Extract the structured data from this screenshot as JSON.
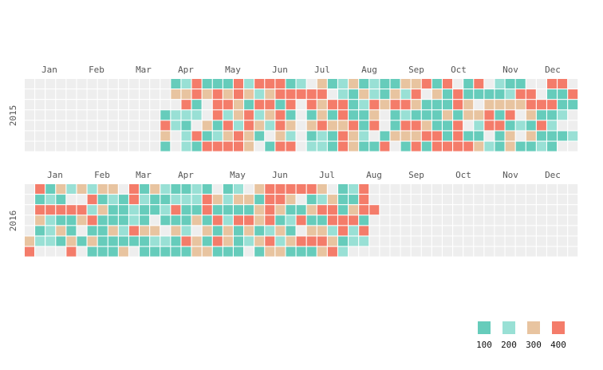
{
  "chart_data": {
    "type": "heatmap",
    "subtype": "calendar",
    "colors": {
      "empty": "#eeeeee",
      "levels": [
        "#66ccbb",
        "#99e0d5",
        "#e8c4a0",
        "#f47c6a"
      ]
    },
    "legend": {
      "placement": "bottom-right",
      "labels": [
        "100",
        "200",
        "300",
        "400"
      ]
    },
    "years": [
      {
        "label": "2015",
        "months": [
          "Jan",
          "Feb",
          "Mar",
          "Apr",
          "May",
          "Jun",
          "Jul",
          "Aug",
          "Sep",
          "Oct",
          "Nov",
          "Dec"
        ],
        "first_active_week": 13,
        "weeks": [
          [
            0,
            0,
            0,
            0,
            0,
            0,
            0
          ],
          [
            0,
            0,
            0,
            0,
            0,
            0,
            0
          ],
          [
            0,
            0,
            0,
            0,
            0,
            0,
            0
          ],
          [
            0,
            0,
            0,
            0,
            0,
            0,
            0
          ],
          [
            0,
            0,
            0,
            0,
            0,
            0,
            0
          ],
          [
            0,
            0,
            0,
            0,
            0,
            0,
            0
          ],
          [
            0,
            0,
            0,
            0,
            0,
            0,
            0
          ],
          [
            0,
            0,
            0,
            0,
            0,
            0,
            0
          ],
          [
            0,
            0,
            0,
            0,
            0,
            0,
            0
          ],
          [
            0,
            0,
            0,
            0,
            0,
            0,
            0
          ],
          [
            0,
            0,
            0,
            0,
            0,
            0,
            0
          ],
          [
            0,
            0,
            0,
            0,
            0,
            0,
            0
          ],
          [
            0,
            0,
            0,
            0,
            0,
            0,
            0
          ],
          [
            0,
            0,
            0,
            1,
            4,
            3,
            1
          ],
          [
            1,
            3,
            0,
            2,
            2,
            0,
            0
          ],
          [
            2,
            3,
            4,
            2,
            1,
            2,
            2
          ],
          [
            4,
            4,
            1,
            2,
            0,
            4,
            1
          ],
          [
            1,
            3,
            0,
            0,
            3,
            1,
            4
          ],
          [
            1,
            4,
            4,
            4,
            1,
            2,
            4
          ],
          [
            1,
            3,
            4,
            2,
            4,
            3,
            4
          ],
          [
            4,
            4,
            3,
            3,
            2,
            4,
            4
          ],
          [
            2,
            3,
            1,
            4,
            4,
            3,
            3
          ],
          [
            4,
            2,
            4,
            2,
            3,
            1,
            0
          ],
          [
            4,
            3,
            4,
            3,
            2,
            0,
            1
          ],
          [
            4,
            4,
            1,
            4,
            4,
            3,
            4
          ],
          [
            1,
            4,
            4,
            1,
            3,
            2,
            4
          ],
          [
            2,
            4,
            0,
            0,
            0,
            0,
            0
          ],
          [
            0,
            4,
            4,
            1,
            3,
            1,
            2
          ],
          [
            3,
            4,
            3,
            3,
            4,
            2,
            2
          ],
          [
            1,
            0,
            4,
            1,
            3,
            1,
            1
          ],
          [
            2,
            2,
            4,
            4,
            3,
            4,
            4
          ],
          [
            3,
            1,
            1,
            1,
            4,
            3,
            3
          ],
          [
            1,
            3,
            2,
            1,
            1,
            2,
            1
          ],
          [
            2,
            2,
            4,
            3,
            4,
            0,
            1
          ],
          [
            1,
            1,
            3,
            0,
            0,
            1,
            4
          ],
          [
            1,
            3,
            4,
            1,
            1,
            3,
            0
          ],
          [
            3,
            2,
            4,
            2,
            4,
            3,
            1
          ],
          [
            3,
            4,
            3,
            1,
            4,
            3,
            4
          ],
          [
            4,
            0,
            1,
            1,
            3,
            4,
            1
          ],
          [
            1,
            3,
            1,
            1,
            1,
            4,
            4
          ],
          [
            4,
            1,
            1,
            3,
            1,
            1,
            4
          ],
          [
            0,
            4,
            4,
            1,
            4,
            4,
            4
          ],
          [
            1,
            1,
            3,
            3,
            0,
            1,
            4
          ],
          [
            4,
            1,
            0,
            3,
            2,
            1,
            3
          ],
          [
            0,
            1,
            3,
            4,
            4,
            0,
            2
          ],
          [
            2,
            1,
            3,
            1,
            4,
            1,
            1
          ],
          [
            1,
            2,
            3,
            4,
            1,
            3,
            3
          ],
          [
            1,
            4,
            3,
            0,
            2,
            0,
            1
          ],
          [
            0,
            4,
            4,
            3,
            1,
            3,
            1
          ],
          [
            0,
            0,
            4,
            1,
            4,
            1,
            2
          ],
          [
            4,
            1,
            4,
            1,
            2,
            1,
            1
          ],
          [
            4,
            1,
            1,
            2,
            0,
            1,
            0
          ],
          [
            0,
            4,
            1,
            0,
            0,
            2,
            0
          ]
        ]
      },
      {
        "label": "2016",
        "months": [
          "Jan",
          "Feb",
          "Mar",
          "Apr",
          "May",
          "Jun",
          "Jul",
          "Aug",
          "Sep",
          "Oct",
          "Nov",
          "Dec"
        ],
        "first_active_week": 0,
        "weeks": [
          [
            0,
            0,
            0,
            0,
            0,
            3,
            4
          ],
          [
            4,
            1,
            4,
            3,
            1,
            2,
            0
          ],
          [
            1,
            2,
            4,
            2,
            2,
            2,
            0
          ],
          [
            3,
            1,
            4,
            1,
            3,
            1,
            0
          ],
          [
            2,
            0,
            4,
            1,
            1,
            3,
            4
          ],
          [
            3,
            0,
            4,
            3,
            0,
            1,
            0
          ],
          [
            2,
            4,
            2,
            4,
            1,
            3,
            1
          ],
          [
            3,
            1,
            3,
            1,
            1,
            1,
            1
          ],
          [
            3,
            2,
            1,
            1,
            3,
            1,
            1
          ],
          [
            0,
            1,
            1,
            1,
            2,
            1,
            3
          ],
          [
            4,
            4,
            2,
            2,
            4,
            1,
            0
          ],
          [
            1,
            2,
            1,
            1,
            3,
            1,
            1
          ],
          [
            3,
            1,
            1,
            0,
            3,
            2,
            1
          ],
          [
            2,
            1,
            2,
            1,
            0,
            2,
            1
          ],
          [
            1,
            2,
            4,
            1,
            3,
            1,
            1
          ],
          [
            1,
            2,
            1,
            1,
            2,
            4,
            1
          ],
          [
            2,
            2,
            1,
            3,
            0,
            3,
            3
          ],
          [
            1,
            4,
            4,
            1,
            3,
            1,
            3
          ],
          [
            0,
            3,
            1,
            4,
            1,
            4,
            1
          ],
          [
            1,
            2,
            1,
            2,
            3,
            3,
            1
          ],
          [
            2,
            3,
            1,
            4,
            1,
            1,
            1
          ],
          [
            0,
            3,
            1,
            4,
            3,
            2,
            0
          ],
          [
            3,
            1,
            3,
            3,
            1,
            3,
            1
          ],
          [
            4,
            4,
            4,
            4,
            2,
            4,
            3
          ],
          [
            4,
            4,
            3,
            1,
            3,
            2,
            3
          ],
          [
            4,
            3,
            1,
            2,
            1,
            3,
            1
          ],
          [
            4,
            0,
            1,
            4,
            0,
            4,
            1
          ],
          [
            4,
            1,
            3,
            1,
            3,
            4,
            1
          ],
          [
            3,
            2,
            4,
            1,
            3,
            4,
            3
          ],
          [
            0,
            3,
            4,
            4,
            2,
            3,
            4
          ],
          [
            1,
            1,
            1,
            4,
            4,
            1,
            2
          ],
          [
            2,
            1,
            3,
            4,
            2,
            2,
            0
          ],
          [
            4,
            4,
            4,
            1,
            4,
            2,
            0
          ],
          [
            0,
            0,
            4,
            0,
            0,
            0,
            0
          ],
          [
            0,
            0,
            0,
            0,
            0,
            0,
            0
          ],
          [
            0,
            0,
            0,
            0,
            0,
            0,
            0
          ],
          [
            0,
            0,
            0,
            0,
            0,
            0,
            0
          ],
          [
            0,
            0,
            0,
            0,
            0,
            0,
            0
          ],
          [
            0,
            0,
            0,
            0,
            0,
            0,
            0
          ],
          [
            0,
            0,
            0,
            0,
            0,
            0,
            0
          ],
          [
            0,
            0,
            0,
            0,
            0,
            0,
            0
          ],
          [
            0,
            0,
            0,
            0,
            0,
            0,
            0
          ],
          [
            0,
            0,
            0,
            0,
            0,
            0,
            0
          ],
          [
            0,
            0,
            0,
            0,
            0,
            0,
            0
          ],
          [
            0,
            0,
            0,
            0,
            0,
            0,
            0
          ],
          [
            0,
            0,
            0,
            0,
            0,
            0,
            0
          ],
          [
            0,
            0,
            0,
            0,
            0,
            0,
            0
          ],
          [
            0,
            0,
            0,
            0,
            0,
            0,
            0
          ],
          [
            0,
            0,
            0,
            0,
            0,
            0,
            0
          ],
          [
            0,
            0,
            0,
            0,
            0,
            0,
            0
          ],
          [
            0,
            0,
            0,
            0,
            0,
            0,
            0
          ],
          [
            0,
            0,
            0,
            0,
            0,
            0,
            0
          ],
          [
            0,
            0,
            0,
            0,
            0,
            0,
            0
          ]
        ]
      }
    ]
  }
}
